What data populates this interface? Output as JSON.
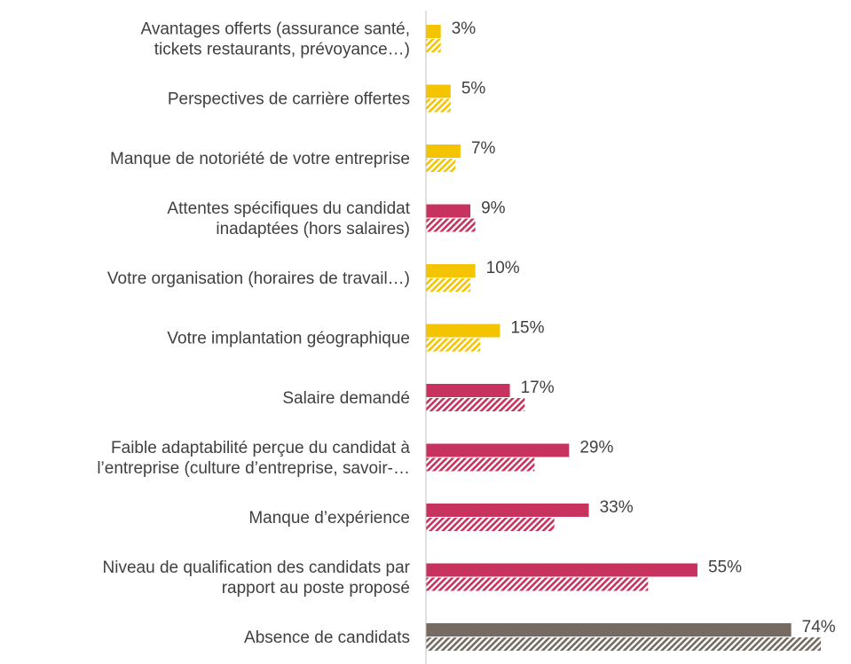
{
  "chart_data": {
    "type": "bar",
    "orientation": "horizontal",
    "categories": [
      [
        "Avantages offerts (assurance santé,",
        "tickets restaurants, prévoyance…)"
      ],
      [
        "Perspectives de carrière offertes"
      ],
      [
        "Manque de notoriété de votre entreprise"
      ],
      [
        "Attentes spécifiques du candidat",
        "inadaptées (hors salaires)"
      ],
      [
        "Votre organisation (horaires de travail…)"
      ],
      [
        "Votre implantation géographique"
      ],
      [
        "Salaire demandé"
      ],
      [
        "Faible adaptabilité perçue du candidat à",
        "l’entreprise (culture d’entreprise, savoir-…"
      ],
      [
        "Manque d’expérience"
      ],
      [
        "Niveau de qualification des candidats par",
        "rapport au poste proposé"
      ],
      [
        "Absence de candidats"
      ]
    ],
    "colors": [
      "#f5c400",
      "#f5c400",
      "#f5c400",
      "#c8325e",
      "#f5c400",
      "#f5c400",
      "#c8325e",
      "#c8325e",
      "#c8325e",
      "#c8325e",
      "#766b62"
    ],
    "series": [
      {
        "pattern": "solid",
        "values": [
          3,
          5,
          7,
          9,
          10,
          15,
          17,
          29,
          33,
          55,
          74
        ],
        "value_labels": [
          "3%",
          "5%",
          "7%",
          "9%",
          "10%",
          "15%",
          "17%",
          "29%",
          "33%",
          "55%",
          "74%"
        ]
      },
      {
        "pattern": "hatch",
        "values": [
          3,
          5,
          6,
          10,
          9,
          11,
          20,
          22,
          26,
          45,
          80
        ]
      }
    ],
    "xlim": [
      0,
      80
    ]
  }
}
